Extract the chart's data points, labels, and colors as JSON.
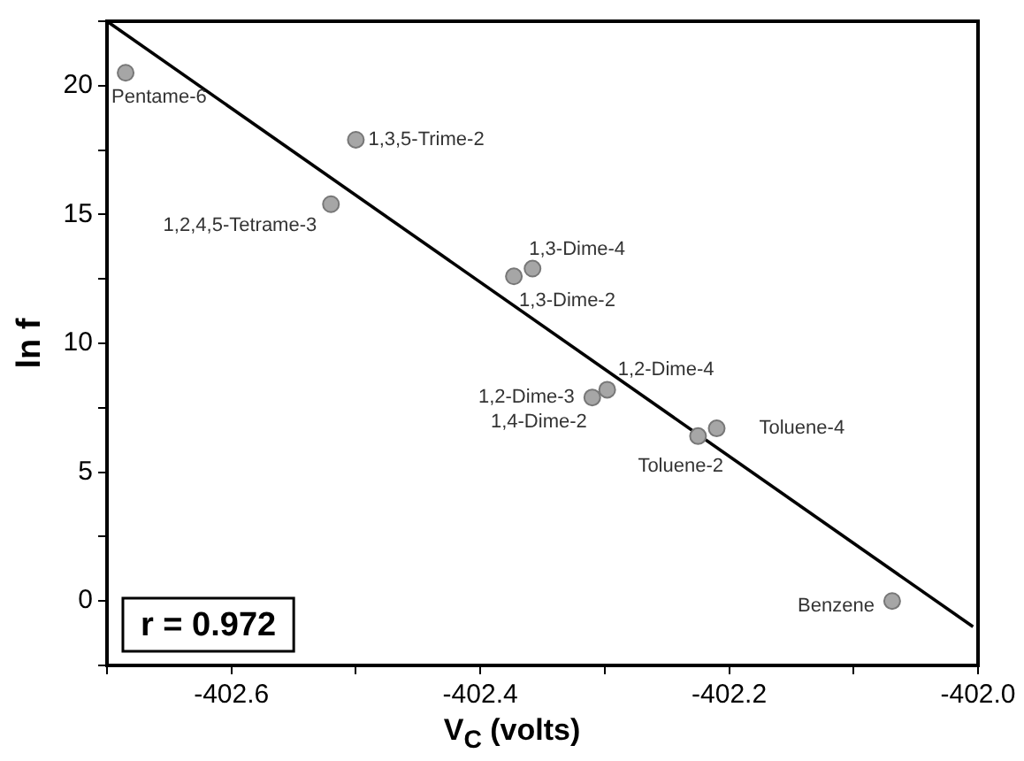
{
  "chart_data": {
    "type": "scatter",
    "xlabel": "V$_{C}$ (volts)",
    "ylabel": "ln f",
    "xlim": [
      -402.7,
      -402.0
    ],
    "xticks": [
      {
        "value": -402.7,
        "label": null
      },
      -402.6,
      {
        "value": -402.5,
        "label": null
      },
      -402.4,
      {
        "value": -402.3,
        "label": null
      },
      -402.2,
      {
        "value": -402.1,
        "label": null
      },
      {
        "value": -402.0,
        "label": "-402.0"
      }
    ],
    "ylim": [
      -2.5,
      22.5
    ],
    "yticks": [
      {
        "value": -2.5,
        "label": null
      },
      0,
      {
        "value": 2.5,
        "label": null
      },
      5,
      {
        "value": 7.5,
        "label": null
      },
      10,
      {
        "value": 12.5,
        "label": null
      },
      15,
      {
        "value": 17.5,
        "label": null
      },
      20,
      {
        "value": 22.5,
        "label": null
      }
    ],
    "grid": false,
    "legend": false,
    "marker": "circle",
    "series": [
      {
        "color": "#a6a6a6",
        "x": [
          -402.685,
          -402.5,
          -402.52,
          -402.358,
          -402.373,
          -402.298,
          -402.31,
          -402.305,
          -402.21,
          -402.225,
          -402.069
        ],
        "values": [
          20.5,
          17.9,
          15.4,
          12.9,
          12.6,
          8.2,
          7.9,
          null,
          6.7,
          6.4,
          0.0
        ]
      },
      {
        "type": "line",
        "color": "#000000",
        "line_style": "solid",
        "marker": "none",
        "x": [
          -402.7,
          -402.004
        ],
        "values": [
          22.5,
          -1.0
        ]
      }
    ],
    "annotations": [
      {
        "text": "Pentame-6",
        "x": -402.685,
        "y": 20.5
      },
      {
        "text": "1,3,5-Trime-2",
        "x": -402.5,
        "y": 17.9
      },
      {
        "text": "1,2,4,5-Tetrame-3",
        "x": -402.52,
        "y": 15.4
      },
      {
        "text": "1,3-Dime-4",
        "x": -402.358,
        "y": 12.9
      },
      {
        "text": "1,3-Dime-2",
        "x": -402.373,
        "y": 12.6
      },
      {
        "text": "1,2-Dime-4",
        "x": -402.298,
        "y": 8.2
      },
      {
        "text": "1,2-Dime-3",
        "x": -402.31,
        "y": 7.9
      },
      {
        "text": "1,4-Dime-2",
        "x": -402.31,
        "y": 7.9
      },
      {
        "text": "Toluene-4",
        "x": -402.21,
        "y": 6.7
      },
      {
        "text": "Toluene-2",
        "x": -402.225,
        "y": 6.4
      },
      {
        "text": "Benzene",
        "x": -402.069,
        "y": 0.0
      },
      "r = 0.972"
    ]
  }
}
